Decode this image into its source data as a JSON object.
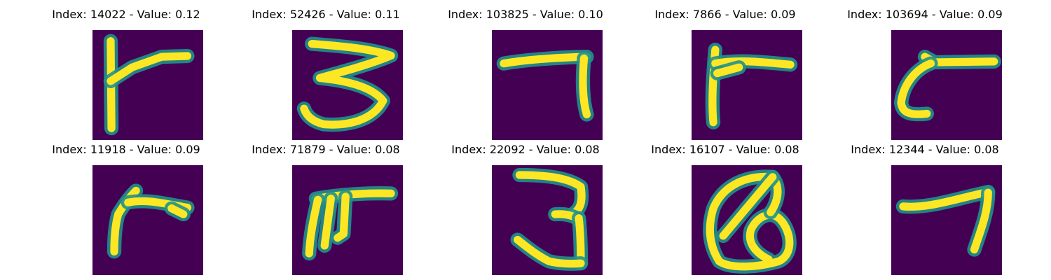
{
  "background_color": "#440154",
  "stroke_colors": [
    "#fde725",
    "#b5de2b",
    "#35b779",
    "#21918c"
  ],
  "colormap": "viridis",
  "panels": [
    {
      "title": "Index: 14022 - Value: 0.12",
      "glyph": "r-angle"
    },
    {
      "title": "Index: 52426 - Value: 0.11",
      "glyph": "three"
    },
    {
      "title": "Index: 103825 - Value: 0.10",
      "glyph": "seven"
    },
    {
      "title": "Index: 7866 - Value: 0.09",
      "glyph": "r-angle"
    },
    {
      "title": "Index: 103694 - Value: 0.09",
      "glyph": "c-hook"
    },
    {
      "title": "Index: 11918 - Value: 0.09",
      "glyph": "r-angle"
    },
    {
      "title": "Index: 71879 - Value: 0.08",
      "glyph": "pi-like"
    },
    {
      "title": "Index: 22092 - Value: 0.08",
      "glyph": "three"
    },
    {
      "title": "Index: 16107 - Value: 0.08",
      "glyph": "q-like"
    },
    {
      "title": "Index: 12344 - Value: 0.08",
      "glyph": "seven"
    }
  ]
}
